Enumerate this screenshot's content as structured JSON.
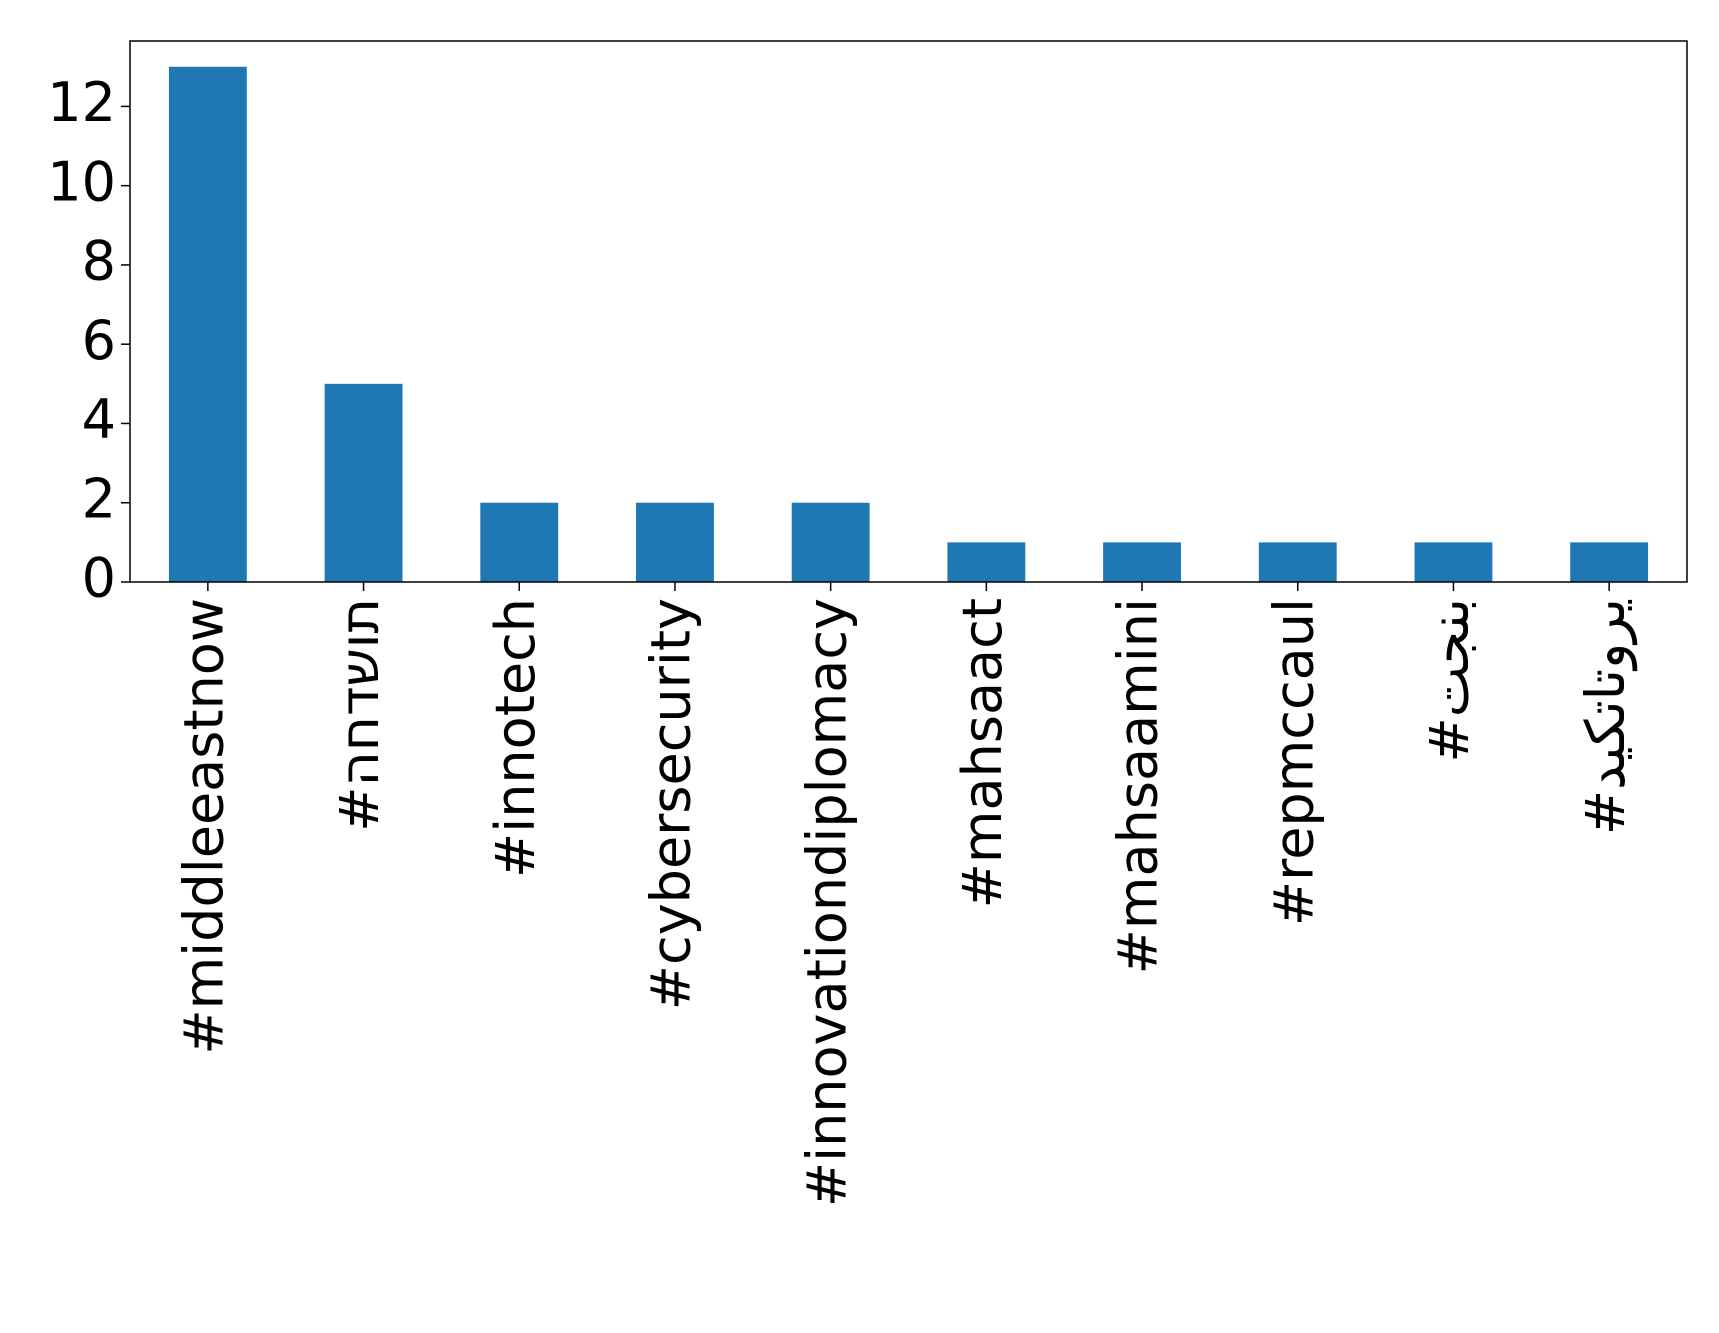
{
  "chart_data": {
    "type": "bar",
    "categories": [
      "#middleeastnow",
      "#החדשות",
      "#innotech",
      "#cybersecurity",
      "#innovationdiplomacy",
      "#mahsaact",
      "#mahsaamini",
      "#repmccaul",
      "#تجنب",
      "#دیکتاتوری"
    ],
    "values": [
      13,
      5,
      2,
      2,
      2,
      1,
      1,
      1,
      1,
      1
    ],
    "color": "#1f77b4",
    "ylim": [
      0,
      13.65
    ],
    "yticks": [
      0,
      2,
      4,
      6,
      8,
      10,
      12
    ],
    "grid": false
  }
}
